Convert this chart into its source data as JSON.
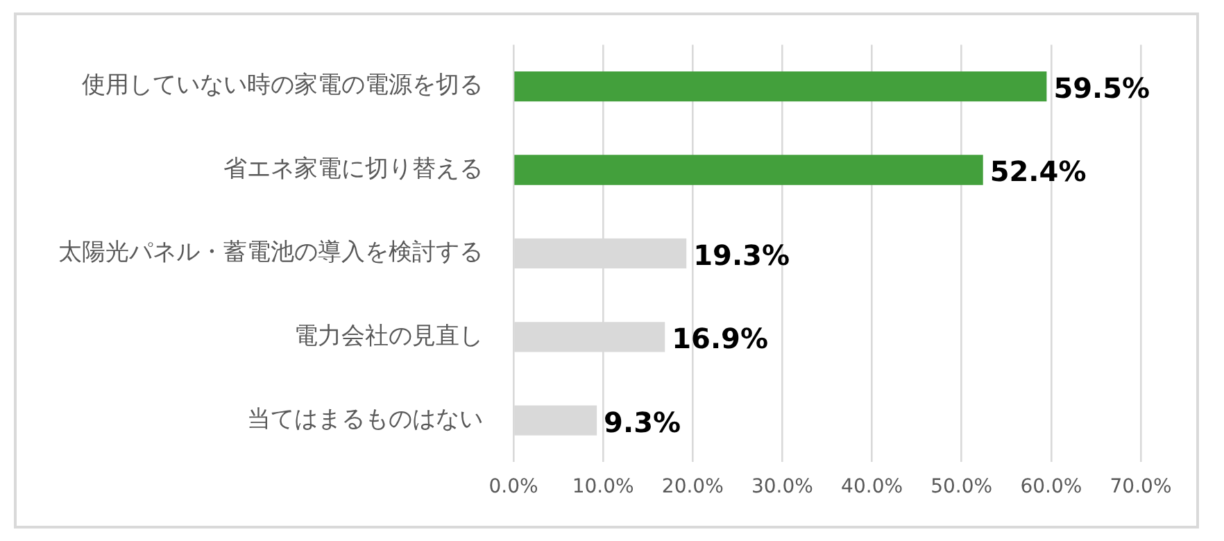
{
  "chart_data": {
    "type": "bar",
    "orientation": "horizontal",
    "categories": [
      "使用していない時の家電の電源を切る",
      "省エネ家電に切り替える",
      "太陽光パネル・蓄電池の導入を検討する",
      "電力会社の見直し",
      "当てはまるものはない"
    ],
    "values": [
      59.5,
      52.4,
      19.3,
      16.9,
      9.3
    ],
    "colors": [
      "#43a03c",
      "#43a03c",
      "#d9d9d9",
      "#d9d9d9",
      "#d9d9d9"
    ],
    "value_labels": [
      "59.5%",
      "52.4%",
      "19.3%",
      "16.9%",
      "9.3%"
    ],
    "xlim": [
      0,
      70
    ],
    "xticks": [
      {
        "value": 0,
        "label": "0.0%"
      },
      {
        "value": 10,
        "label": "10.0%"
      },
      {
        "value": 20,
        "label": "20.0%"
      },
      {
        "value": 30,
        "label": "30.0%"
      },
      {
        "value": 40,
        "label": "40.0%"
      },
      {
        "value": 50,
        "label": "50.0%"
      },
      {
        "value": 60,
        "label": "60.0%"
      },
      {
        "value": 70,
        "label": "70.0%"
      }
    ],
    "grid": "x",
    "legend": false
  }
}
